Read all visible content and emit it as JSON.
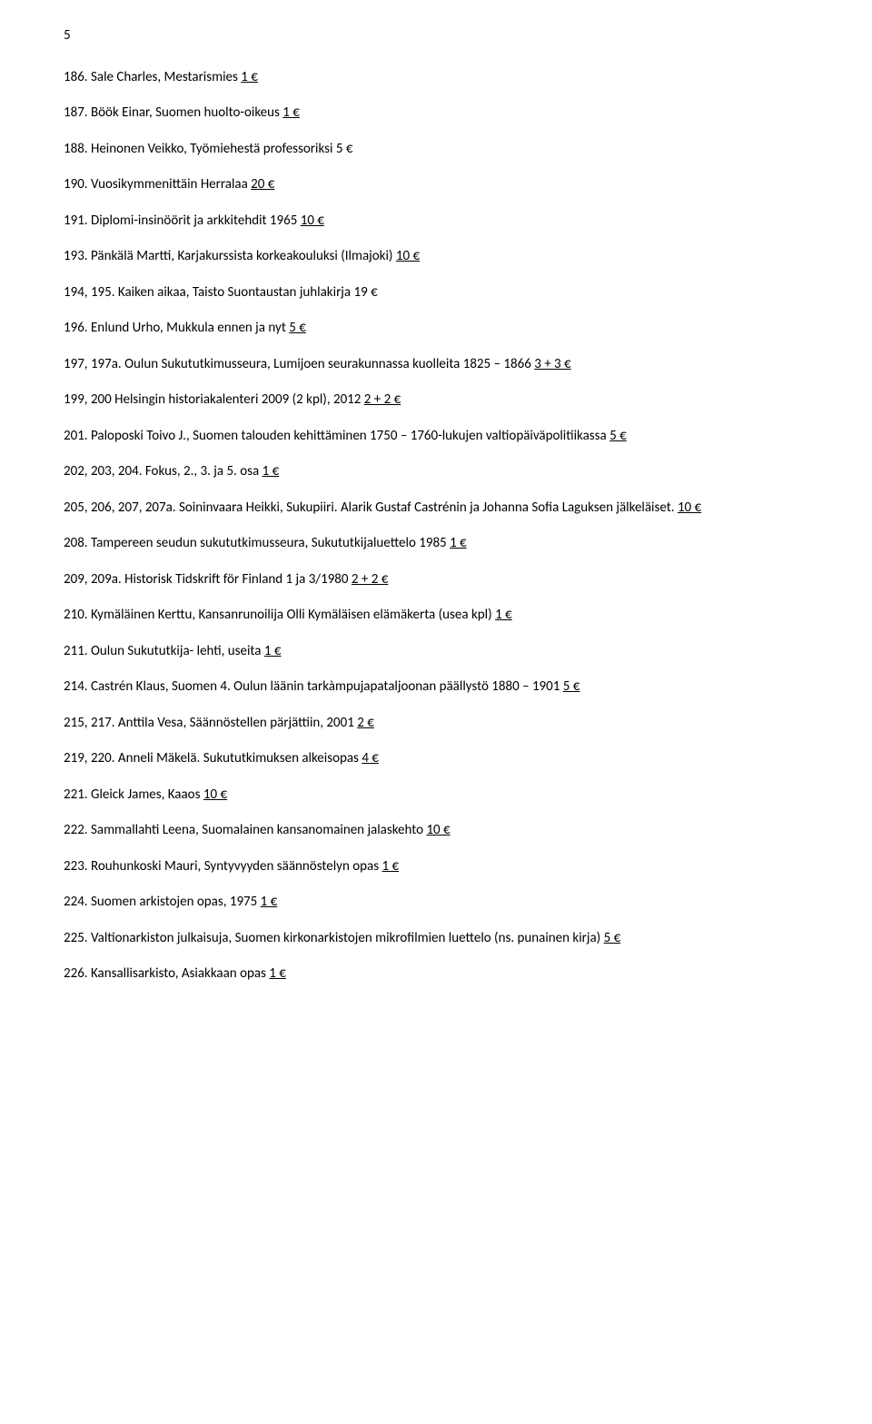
{
  "page_number": "5",
  "text_color": "#000000",
  "background_color": "#ffffff",
  "font_family": "Calibri, 'Segoe UI', Arial, sans-serif",
  "base_fontsize_pt": 11,
  "entries": [
    {
      "text": "186. Sale Charles, Mestarismies ",
      "price": "1 €"
    },
    {
      "text": "187. Böök Einar, Suomen huolto-oikeus ",
      "price": "1 €"
    },
    {
      "text": "188. Heinonen Veikko, Työmiehestä professoriksi 5 €",
      "price": ""
    },
    {
      "text": "190. Vuosikymmenittäin Herralaa ",
      "price": "20 €"
    },
    {
      "text": "191. Diplomi-insinöörit ja arkkitehdit 1965 ",
      "price": "10 €"
    },
    {
      "text": "193. Pänkälä Martti, Karjakurssista korkeakouluksi (Ilmajoki) ",
      "price": "10 €"
    },
    {
      "text": "194, 195. Kaiken aikaa, Taisto Suontaustan juhlakirja 19 €",
      "price": ""
    },
    {
      "text": "196. Enlund Urho, Mukkula ennen ja nyt ",
      "price": "5 €"
    },
    {
      "text": "197, 197a. Oulun Sukututkimusseura, Lumijoen seurakunnassa kuolleita 1825 – 1866 ",
      "price": "3 + 3 €"
    },
    {
      "text": "199, 200 Helsingin historiakalenteri 2009 (2 kpl), 2012 ",
      "price": "2 + 2 €"
    },
    {
      "text": "201. Paloposki Toivo J., Suomen talouden kehittäminen 1750 – 1760-lukujen valtiopäiväpolitiikassa ",
      "price": "5 €"
    },
    {
      "text": "202, 203, 204. Fokus, 2., 3. ja 5. osa ",
      "price": "1 €"
    },
    {
      "text": "205, 206, 207, 207a. Soininvaara Heikki, Sukupiiri. Alarik Gustaf Castrénin ja Johanna Sofia  Laguksen jälkeläiset. ",
      "price": "10 €"
    },
    {
      "text": "208. Tampereen seudun sukututkimusseura, Sukututkijaluettelo 1985 ",
      "price": "1 €"
    },
    {
      "text": "209, 209a. Historisk Tidskrift för Finland 1 ja 3/1980 ",
      "price": "2 + 2 €"
    },
    {
      "text": "210. Kymäläinen Kerttu, Kansanrunoilija Olli Kymäläisen elämäkerta (usea kpl) ",
      "price": "1 €"
    },
    {
      "text": "211. Oulun Sukututkija- lehti, useita ",
      "price": "1 €"
    },
    {
      "text": "214. Castrén Klaus, Suomen 4. Oulun läänin tarkàmpujapataljoonan päällystö  1880 – 1901 ",
      "price": "5 €"
    },
    {
      "text": "215, 217. Anttila Vesa, Säännöstellen pärjättiin, 2001 ",
      "price": "2 €"
    },
    {
      "text": "219, 220. Anneli Mäkelä. Sukututkimuksen alkeisopas ",
      "price": "4 €"
    },
    {
      "text": "221. Gleick James, Kaaos ",
      "price": "10 €"
    },
    {
      "text": "222. Sammallahti Leena, Suomalainen kansanomainen jalaskehto ",
      "price": "10 €"
    },
    {
      "text": "223. Rouhunkoski Mauri, Syntyvyyden säännöstelyn opas ",
      "price": "1 €"
    },
    {
      "text": "224. Suomen arkistojen opas, 1975 ",
      "price": "1 €"
    },
    {
      "text": "225. Valtionarkiston julkaisuja, Suomen kirkonarkistojen mikrofilmien luettelo (ns. punainen kirja) ",
      "price": "5 €"
    },
    {
      "text": "226. Kansallisarkisto, Asiakkaan opas ",
      "price": "1 €"
    }
  ]
}
